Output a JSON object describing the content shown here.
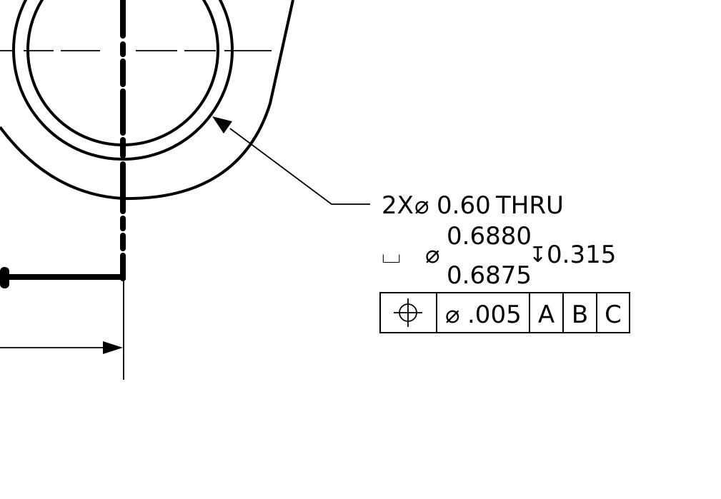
{
  "callout": {
    "quantity": "2X",
    "diameter_symbol": "⌀",
    "hole_diameter": "0.60",
    "hole_type": "THRU",
    "counterbore_symbol": "⌴",
    "cbore_diameter_upper": "0.6880",
    "cbore_diameter_lower": "0.6875",
    "depth_symbol": "↧",
    "cbore_depth": "0.315"
  },
  "feature_control_frame": {
    "characteristic": "position",
    "characteristic_symbol": "⌖",
    "tolerance": ".005",
    "datums": [
      "A",
      "B",
      "C"
    ]
  },
  "colors": {
    "line": "#000000",
    "background": "#ffffff"
  }
}
